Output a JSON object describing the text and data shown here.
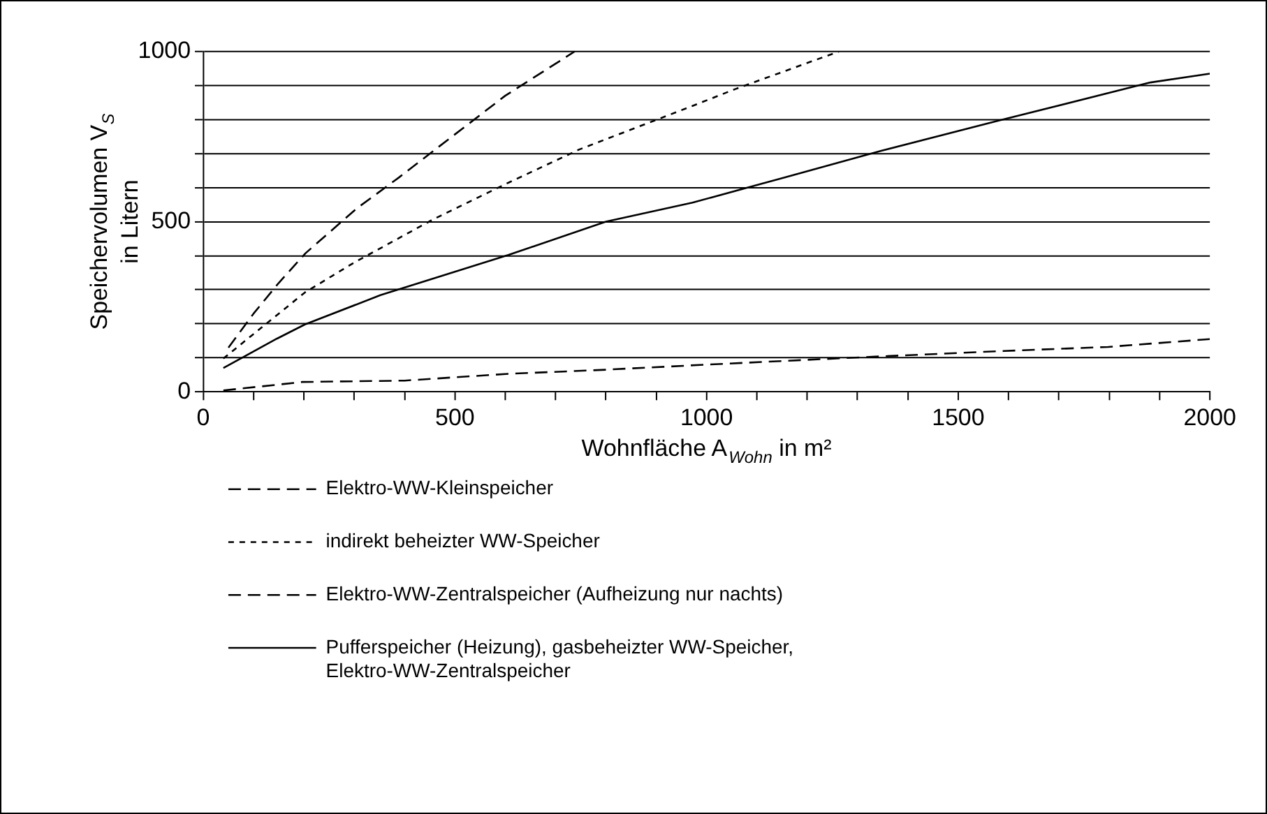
{
  "chart_data": {
    "type": "line",
    "xlabel": "Wohnfläche A$_{Wohn}$ in m²",
    "ylabel": "Speichervolumen V$_{S}$\nin Litern",
    "xlim": [
      0,
      2000
    ],
    "ylim": [
      0,
      1000
    ],
    "xticks": [
      0,
      {
        "value": 100,
        "label": null
      },
      {
        "value": 200,
        "label": null
      },
      {
        "value": 300,
        "label": null
      },
      {
        "value": 400,
        "label": null
      },
      500,
      {
        "value": 600,
        "label": null
      },
      {
        "value": 700,
        "label": null
      },
      {
        "value": 800,
        "label": null
      },
      {
        "value": 900,
        "label": null
      },
      1000,
      {
        "value": 1100,
        "label": null
      },
      {
        "value": 1200,
        "label": null
      },
      {
        "value": 1300,
        "label": null
      },
      {
        "value": 1400,
        "label": null
      },
      1500,
      {
        "value": 1600,
        "label": null
      },
      {
        "value": 1700,
        "label": null
      },
      {
        "value": 1800,
        "label": null
      },
      {
        "value": 1900,
        "label": null
      },
      2000
    ],
    "yticks": [
      0,
      {
        "value": 100,
        "label": null
      },
      {
        "value": 200,
        "label": null
      },
      {
        "value": 300,
        "label": null
      },
      {
        "value": 400,
        "label": null
      },
      500,
      {
        "value": 600,
        "label": null
      },
      {
        "value": 700,
        "label": null
      },
      {
        "value": 800,
        "label": null
      },
      {
        "value": 900,
        "label": null
      },
      1000
    ],
    "grid": "y",
    "legend": "bottom",
    "marker": "none",
    "series": [
      {
        "name": "Elektro-WW-Kleinspeicher",
        "color": "#000000",
        "line_style": "dashed",
        "x": [
          50,
          100,
          150,
          203,
          305,
          389,
          460,
          600,
          738
        ],
        "values": [
          130,
          230,
          320,
          407,
          539,
          630,
          711,
          870,
          1000
        ]
      },
      {
        "name": "indirekt beheizter WW-Speicher",
        "color": "#000000",
        "line_style": "dotted",
        "x": [
          40,
          100,
          202,
          300,
          456,
          600,
          747,
          972,
          1056,
          1263
        ],
        "values": [
          98,
          170,
          292,
          380,
          506,
          610,
          712,
          840,
          889,
          1000
        ]
      },
      {
        "name": "Elektro-WW-Zentralspeicher (Aufheizung nur nachts)",
        "color": "#000000",
        "line_style": "dashed",
        "x": [
          40,
          197,
          400,
          606,
          800,
          1000,
          1329,
          1591,
          1798,
          2000
        ],
        "values": [
          4,
          29,
          33,
          53,
          65,
          80,
          103,
          120,
          132,
          155
        ]
      },
      {
        "name": "Pufferspeicher (Heizung), gasbeheizter WW-Speicher, Elektro-WW-Zentralspeicher",
        "color": "#000000",
        "line_style": "solid",
        "x": [
          40,
          146,
          202,
          352,
          606,
          800,
          972,
          1104,
          1347,
          1583,
          1882,
          2000
        ],
        "values": [
          70,
          156,
          198,
          284,
          402,
          500,
          556,
          609,
          708,
          798,
          909,
          935
        ]
      }
    ]
  }
}
